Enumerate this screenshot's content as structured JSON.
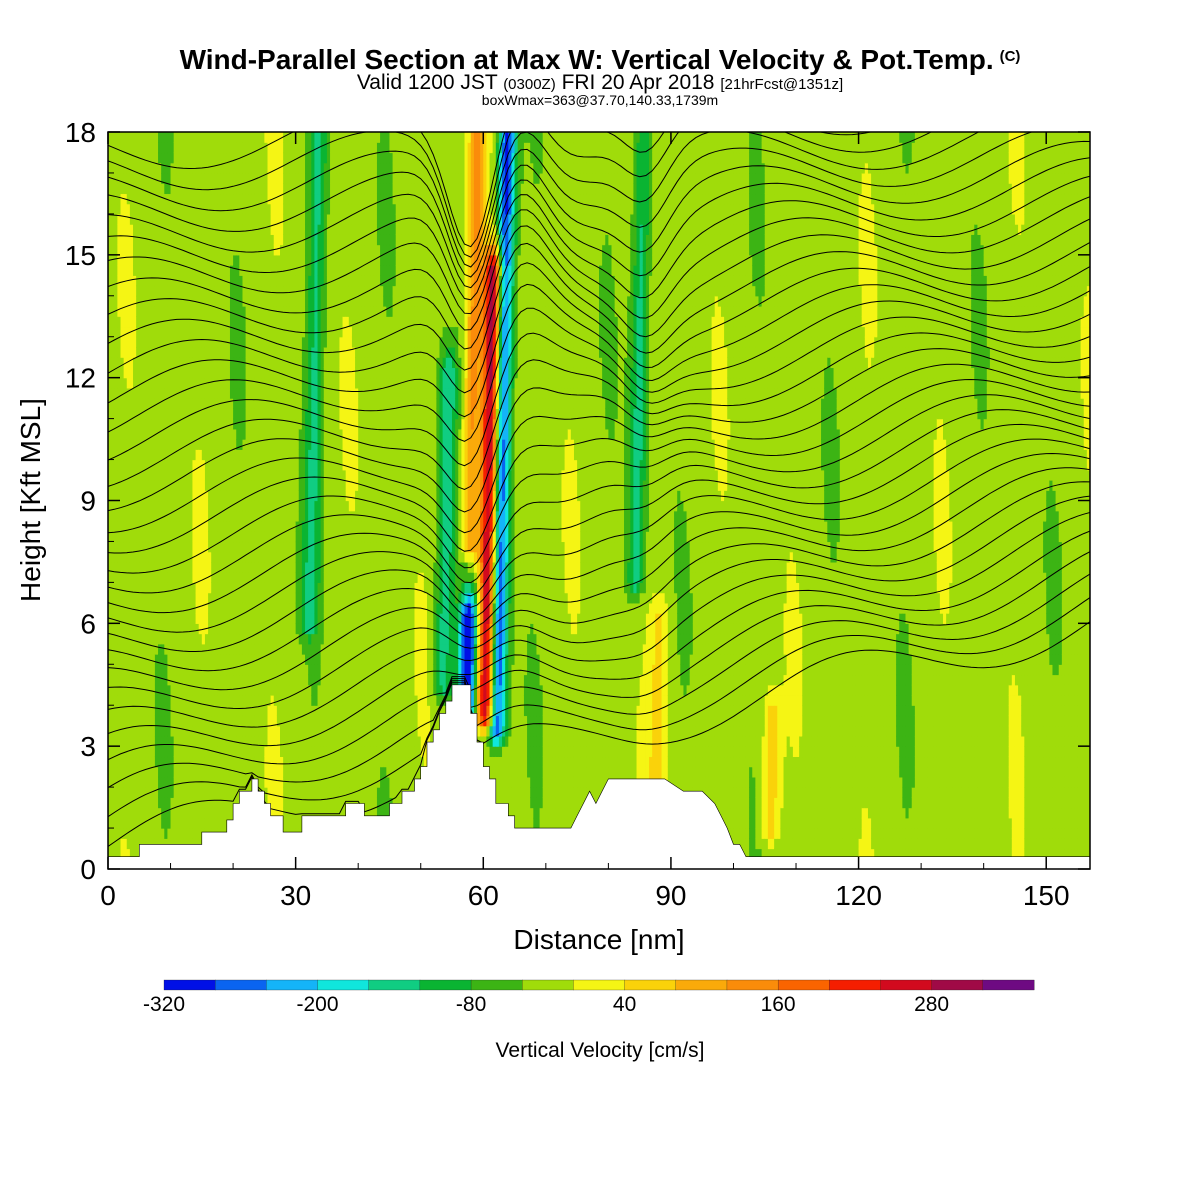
{
  "header": {
    "title": "Wind-Parallel Section at Max W: Vertical Velocity & Pot.Temp.",
    "copyright_mark": "(C)",
    "valid_prefix": "Valid 1200 JST",
    "valid_utc": "(0300Z)",
    "valid_date": "FRI 20 Apr 2018",
    "forecast_info": "[21hrFcst@1351z]",
    "box_info": "boxWmax=363@37.70,140.33,1739m"
  },
  "chart_data": {
    "type": "heatmap",
    "xlabel": "Distance [nm]",
    "ylabel": "Height [Kft MSL]",
    "xlim": [
      0,
      157
    ],
    "ylim": [
      0,
      18
    ],
    "x_ticks": [
      0,
      30,
      60,
      90,
      120,
      150
    ],
    "y_ticks": [
      0,
      3,
      6,
      9,
      12,
      15,
      18
    ],
    "colorbar": {
      "label": "Vertical Velocity [cm/s]",
      "levels": [
        -320,
        -280,
        -240,
        -200,
        -160,
        -120,
        -80,
        -40,
        0,
        40,
        80,
        120,
        160,
        200,
        240,
        280,
        320,
        360
      ],
      "tick_labels": [
        "-320",
        "-200",
        "-80",
        "40",
        "160",
        "280"
      ],
      "tick_values": [
        -320,
        -200,
        -80,
        40,
        160,
        280
      ],
      "colors": [
        "#0010e6",
        "#0a64f0",
        "#14b4f8",
        "#10e6dc",
        "#10cd82",
        "#0ab432",
        "#3cb414",
        "#a0dc0a",
        "#f5f514",
        "#fad20a",
        "#faaa0a",
        "#fa8c0a",
        "#fa6400",
        "#f51e00",
        "#d20a1e",
        "#a00a46",
        "#6e0a82"
      ]
    },
    "background_value": -20,
    "velocity_features": [
      {
        "type": "updraft",
        "x": 61,
        "height_range": [
          3.8,
          14.5
        ],
        "peak": 330
      },
      {
        "type": "updraft",
        "x": 58.5,
        "height_range": [
          8,
          18
        ],
        "peak": 150
      },
      {
        "type": "downdraft",
        "x": 63,
        "height_range": [
          3.4,
          18
        ],
        "peak": -280
      },
      {
        "type": "downdraft",
        "x": 57.5,
        "height_range": [
          4,
          6
        ],
        "peak": -320
      },
      {
        "type": "downdraft",
        "x": 54,
        "height_range": [
          4.5,
          12
        ],
        "peak": -120
      },
      {
        "type": "downdraft",
        "x": 85,
        "height_range": [
          7,
          18
        ],
        "peak": -120
      },
      {
        "type": "downdraft",
        "x": 33,
        "height_range": [
          6,
          18
        ],
        "peak": -100
      },
      {
        "type": "updraft",
        "x": 106,
        "height_range": [
          1,
          3.5
        ],
        "peak": 90
      },
      {
        "type": "updraft",
        "x": 88,
        "height_range": [
          2,
          6
        ],
        "peak": 70
      }
    ],
    "terrain": {
      "x": [
        0,
        5,
        5,
        15,
        15,
        19,
        19,
        20,
        20,
        21,
        21,
        23,
        23,
        24,
        24,
        25,
        25,
        26,
        26,
        28,
        28,
        31,
        31,
        38,
        38,
        41,
        41,
        45,
        45,
        47,
        47,
        49,
        49,
        50,
        50,
        51,
        51,
        52,
        52,
        53,
        53,
        54,
        54,
        55,
        55,
        56,
        56,
        58,
        58,
        59,
        59,
        60,
        60,
        61,
        61,
        62,
        62,
        64,
        64,
        65,
        65,
        66,
        66,
        68,
        68,
        70,
        70,
        72,
        72,
        73,
        73,
        74,
        74,
        75,
        75,
        76,
        76,
        77,
        77,
        78,
        78,
        79,
        79,
        80,
        80,
        81,
        81,
        82,
        82,
        89,
        89,
        92,
        92,
        95,
        95,
        97,
        97,
        98,
        98,
        99,
        99,
        100,
        100,
        101,
        101,
        102,
        102,
        103,
        103,
        157
      ],
      "kft": [
        0.3,
        0.3,
        0.6,
        0.6,
        0.9,
        0.9,
        1.2,
        1.2,
        1.6,
        1.6,
        1.9,
        1.9,
        2.2,
        2.2,
        1.9,
        1.9,
        1.6,
        1.6,
        1.3,
        1.3,
        0.9,
        0.9,
        1.3,
        1.3,
        1.6,
        1.6,
        1.3,
        1.3,
        1.6,
        1.6,
        1.9,
        1.9,
        2.2,
        2.2,
        2.5,
        2.5,
        3.1,
        3.1,
        3.4,
        3.4,
        3.8,
        3.8,
        4.1,
        4.1,
        4.5,
        4.5,
        4.5,
        4.5,
        3.8,
        3.8,
        3.1,
        3.1,
        2.5,
        2.5,
        2.2,
        2.2,
        1.6,
        1.6,
        1.3,
        1.3,
        1.0,
        1.0,
        1.0,
        1.0,
        1.0,
        1.0,
        1.0,
        1.0,
        1.0,
        1.0,
        1.0,
        1.0,
        1.0,
        1.3,
        1.3,
        1.6,
        1.6,
        1.9,
        1.9,
        1.6,
        1.6,
        1.9,
        1.9,
        2.2,
        2.2,
        2.2,
        2.2,
        2.2,
        2.2,
        2.2,
        2.2,
        1.9,
        1.9,
        1.9,
        1.9,
        1.6,
        1.6,
        1.3,
        1.3,
        1.0,
        1.0,
        0.6,
        0.6,
        0.6,
        0.6,
        0.3,
        0.3,
        0.3,
        0.3,
        0.3
      ]
    },
    "contours": {
      "variable": "potential temperature",
      "levels": [
        2,
        4,
        6,
        8,
        10,
        12,
        14,
        16,
        18,
        20,
        22,
        24,
        26,
        28,
        30,
        32,
        34,
        36,
        38,
        40,
        42,
        44,
        46,
        48,
        50,
        52,
        54,
        56,
        58,
        60,
        62,
        64
      ],
      "color": "#000000"
    }
  }
}
